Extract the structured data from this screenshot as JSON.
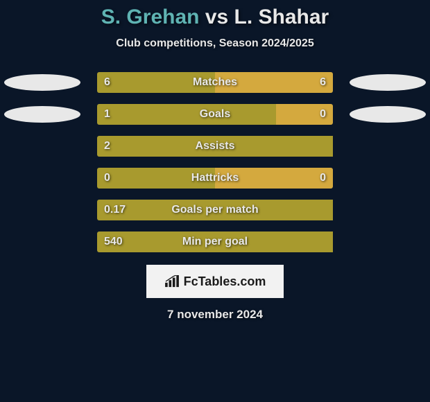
{
  "colors": {
    "background": "#0a1628",
    "text_light": "#e8e8e8",
    "player1_color": "#5fb3b3",
    "player2_color": "#e8e8e8",
    "track_bg": "#1a2638",
    "bar_left": "#a89a2e",
    "bar_right": "#d4a93e",
    "ellipse": "#e8e8e8",
    "brand_bg": "#f2f2f2",
    "brand_text": "#1a1a1a"
  },
  "title": {
    "player1": "S. Grehan",
    "vs": "vs",
    "player2": "L. Shahar",
    "fontsize": 30
  },
  "subtitle": "Club competitions, Season 2024/2025",
  "rows": [
    {
      "label": "Matches",
      "left_val": "6",
      "right_val": "6",
      "left_pct": 50,
      "right_pct": 50,
      "show_left_ellipse": true,
      "show_right_ellipse": true,
      "show_right_val": true
    },
    {
      "label": "Goals",
      "left_val": "1",
      "right_val": "0",
      "left_pct": 76,
      "right_pct": 24,
      "show_left_ellipse": true,
      "show_right_ellipse": true,
      "show_right_val": true
    },
    {
      "label": "Assists",
      "left_val": "2",
      "right_val": "",
      "left_pct": 100,
      "right_pct": 0,
      "show_left_ellipse": false,
      "show_right_ellipse": false,
      "show_right_val": false
    },
    {
      "label": "Hattricks",
      "left_val": "0",
      "right_val": "0",
      "left_pct": 50,
      "right_pct": 50,
      "show_left_ellipse": false,
      "show_right_ellipse": false,
      "show_right_val": true
    },
    {
      "label": "Goals per match",
      "left_val": "0.17",
      "right_val": "",
      "left_pct": 100,
      "right_pct": 0,
      "show_left_ellipse": false,
      "show_right_ellipse": false,
      "show_right_val": false
    },
    {
      "label": "Min per goal",
      "left_val": "540",
      "right_val": "",
      "left_pct": 100,
      "right_pct": 0,
      "show_left_ellipse": false,
      "show_right_ellipse": false,
      "show_right_val": false
    }
  ],
  "brand": {
    "text": "FcTables.com"
  },
  "date": "7 november 2024"
}
